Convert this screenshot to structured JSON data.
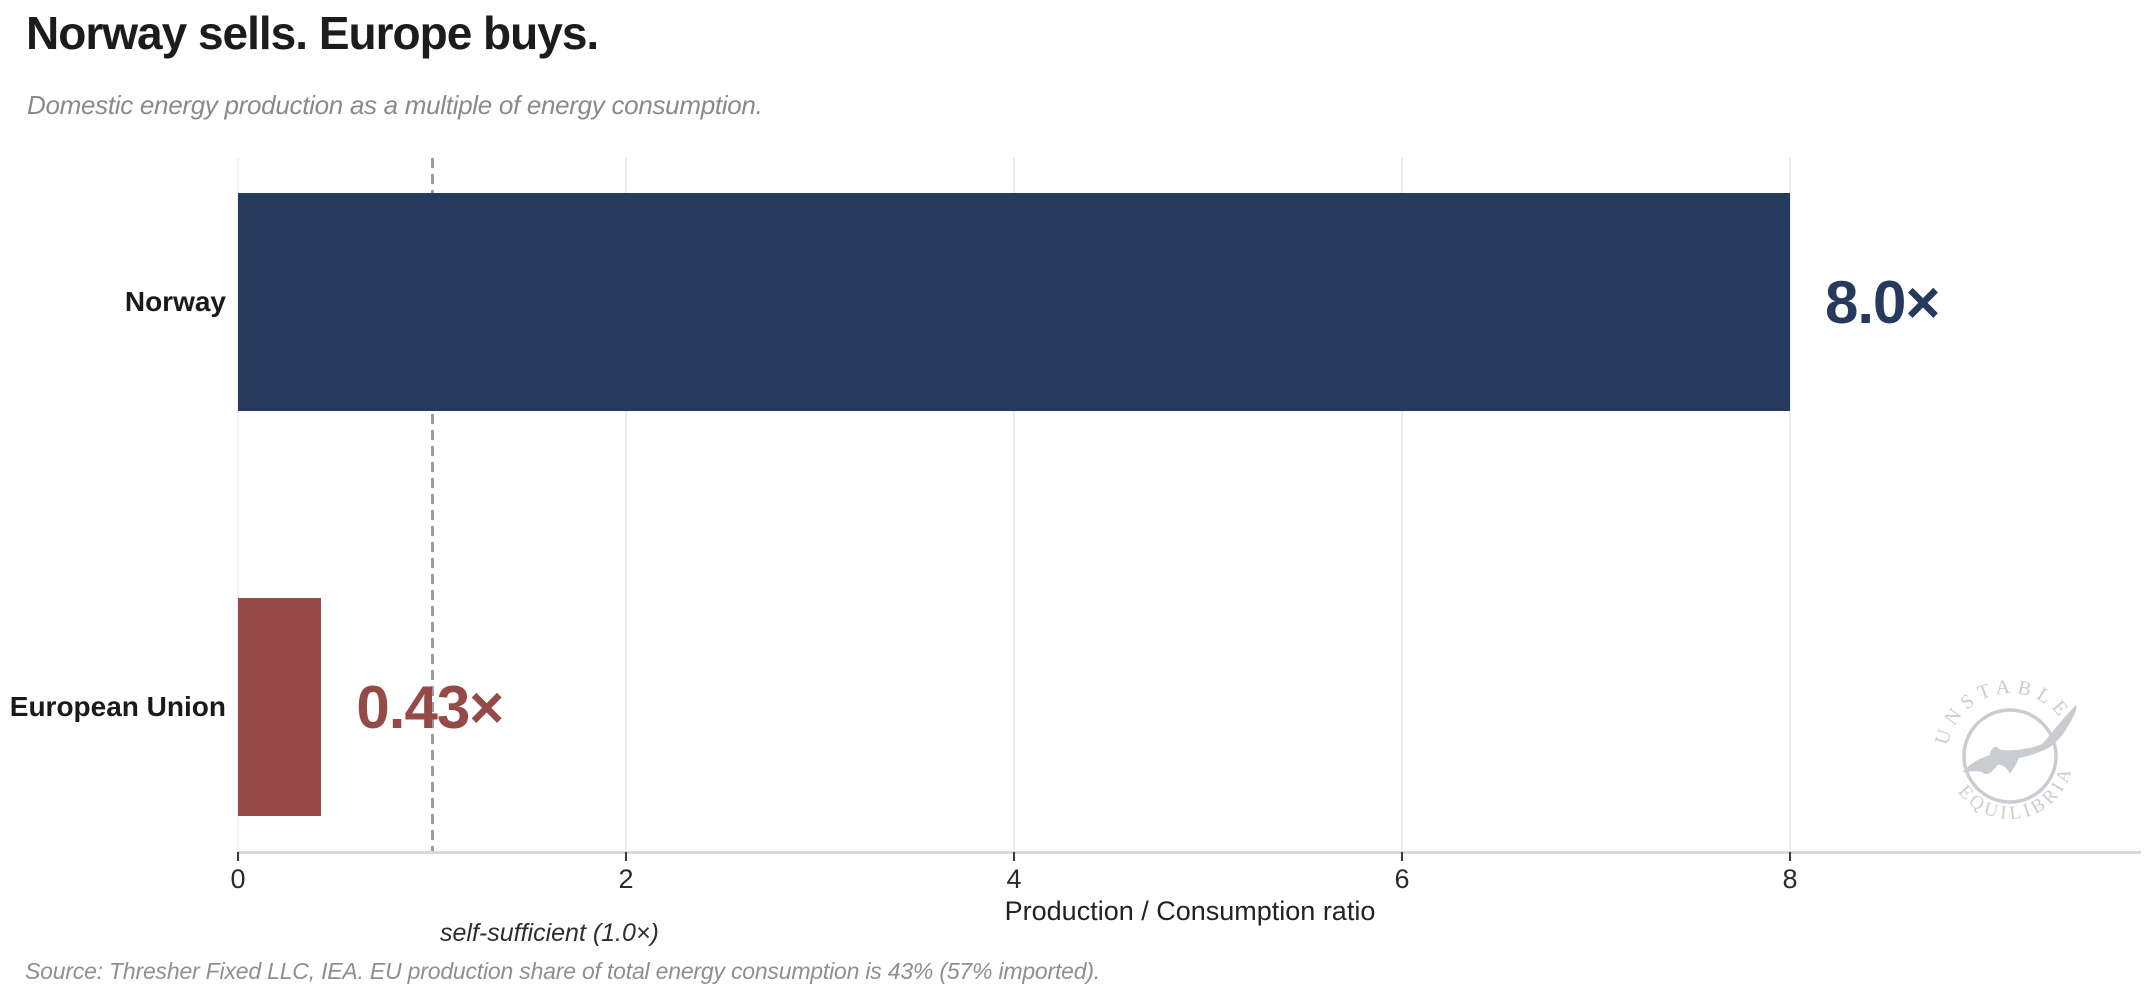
{
  "header": {
    "title": "Norway sells. Europe buys.",
    "subtitle": "Domestic energy production as a multiple of energy consumption."
  },
  "footer": {
    "source": "Source: Thresher Fixed LLC, IEA. EU production share of total energy consumption is 43% (57% imported)."
  },
  "watermark": {
    "arc_top": "UNSTABLE",
    "arc_bottom": "EQUILIBRIA",
    "icon": "thresher-shark"
  },
  "colors": {
    "norway_bar": "#253a5c",
    "eu_bar": "#954a48",
    "grid": "#ececec",
    "axis_line": "#d9d9d9",
    "reference_line": "#9c9c9c",
    "subtitle_text": "#8a8a8a",
    "source_text": "#8f8f8f",
    "watermark": "#c9cdd1"
  },
  "chart_data": {
    "type": "bar",
    "orientation": "horizontal",
    "title": "Norway sells. Europe buys.",
    "subtitle": "Domestic energy production as a multiple of energy consumption.",
    "xlabel": "Production / Consumption ratio",
    "categories": [
      "Norway",
      "European Union"
    ],
    "values": [
      8.0,
      0.43
    ],
    "value_labels": [
      "8.0×",
      "0.43×"
    ],
    "bar_colors": [
      "#253a5c",
      "#954a48"
    ],
    "xticks": [
      0,
      2,
      4,
      6,
      8
    ],
    "xlim": [
      0,
      9.8
    ],
    "grid": "vertical-light",
    "legend": "none",
    "reference_line": {
      "x": 1.0,
      "label": "self-sufficient (1.0×)",
      "style": "dashed"
    },
    "source_note": "Source: Thresher Fixed LLC, IEA. EU production share of total energy consumption is 43% (57% imported)."
  }
}
